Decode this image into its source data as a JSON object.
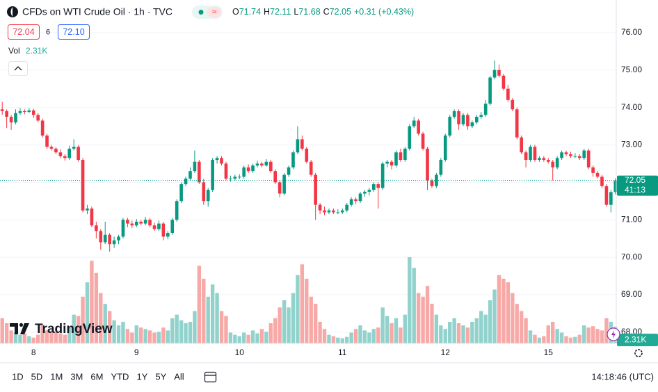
{
  "header": {
    "title": "CFDs on WTI Crude Oil · 1h · TVC",
    "ohlc": [
      {
        "label": "O",
        "value": "71.74"
      },
      {
        "label": "H",
        "value": "72.11"
      },
      {
        "label": "L",
        "value": "71.68"
      },
      {
        "label": "C",
        "value": "72.05"
      }
    ],
    "change": "+0.31 (+0.43%)",
    "sell": "72.04",
    "spread": "6",
    "buy": "72.10",
    "vol_label": "Vol",
    "vol_value": "2.31K",
    "logo": "TradingView"
  },
  "chart_data": {
    "type": "candlestick",
    "up_color": "#089981",
    "down_color": "#f23645",
    "vol_up_color": "#92d2cc",
    "vol_down_color": "#f7a9a7",
    "grid": true,
    "ylim": [
      67.7,
      76.87
    ],
    "yticks": [
      {
        "value": 68,
        "label": "68.00"
      },
      {
        "value": 69,
        "label": "69.00"
      },
      {
        "value": 70,
        "label": "70.00"
      },
      {
        "value": 71,
        "label": "71.00"
      },
      {
        "value": 72,
        "label": "72.00"
      },
      {
        "value": 73,
        "label": "73.00"
      },
      {
        "value": 74,
        "label": "74.00"
      },
      {
        "value": 75,
        "label": "75.00"
      },
      {
        "value": 76,
        "label": "76.00"
      }
    ],
    "vlim": [
      0,
      12
    ],
    "last_price_label": "72.05",
    "countdown": "41:13",
    "volume_label": "2.31K",
    "categories": [
      null,
      null,
      null,
      null,
      null,
      null,
      null,
      "8",
      null,
      null,
      null,
      null,
      null,
      null,
      null,
      null,
      null,
      null,
      null,
      null,
      null,
      null,
      null,
      null,
      null,
      null,
      null,
      null,
      null,
      null,
      "9",
      null,
      null,
      null,
      null,
      null,
      null,
      null,
      null,
      null,
      null,
      null,
      null,
      null,
      null,
      null,
      null,
      null,
      null,
      null,
      null,
      null,
      null,
      "10",
      null,
      null,
      null,
      null,
      null,
      null,
      null,
      null,
      null,
      null,
      null,
      null,
      null,
      null,
      null,
      null,
      null,
      null,
      null,
      null,
      null,
      null,
      "11",
      null,
      null,
      null,
      null,
      null,
      null,
      null,
      null,
      null,
      null,
      null,
      null,
      null,
      null,
      null,
      null,
      null,
      null,
      null,
      null,
      null,
      null,
      "12",
      null,
      null,
      null,
      null,
      null,
      null,
      null,
      null,
      null,
      null,
      null,
      null,
      null,
      null,
      null,
      null,
      null,
      null,
      null,
      null,
      null,
      null,
      "15",
      null,
      null,
      null,
      null,
      null,
      null,
      null,
      null,
      null,
      null,
      null,
      null,
      null,
      null,
      null
    ],
    "candles": [
      [
        73.95,
        74.15,
        73.8,
        73.9
      ],
      [
        73.9,
        73.95,
        73.45,
        73.75
      ],
      [
        73.75,
        73.8,
        73.4,
        73.6
      ],
      [
        73.6,
        73.95,
        73.55,
        73.85
      ],
      [
        73.85,
        73.98,
        73.8,
        73.9
      ],
      [
        73.9,
        73.95,
        73.82,
        73.88
      ],
      [
        73.88,
        73.98,
        73.85,
        73.92
      ],
      [
        73.92,
        73.96,
        73.72,
        73.8
      ],
      [
        73.8,
        73.85,
        73.6,
        73.65
      ],
      [
        73.65,
        73.7,
        73.2,
        73.25
      ],
      [
        73.25,
        73.3,
        72.9,
        72.95
      ],
      [
        72.95,
        73.0,
        72.85,
        72.9
      ],
      [
        72.9,
        72.95,
        72.75,
        72.8
      ],
      [
        72.8,
        72.88,
        72.65,
        72.7
      ],
      [
        72.7,
        72.75,
        72.58,
        72.65
      ],
      [
        72.65,
        72.98,
        72.6,
        72.9
      ],
      [
        72.9,
        73.15,
        72.85,
        72.95
      ],
      [
        72.95,
        73.0,
        72.55,
        72.6
      ],
      [
        72.6,
        72.65,
        71.2,
        71.25
      ],
      [
        71.25,
        71.4,
        71.15,
        71.3
      ],
      [
        71.3,
        71.35,
        70.8,
        70.85
      ],
      [
        70.85,
        70.95,
        70.5,
        70.7
      ],
      [
        70.7,
        70.75,
        70.2,
        70.4
      ],
      [
        70.4,
        70.95,
        70.35,
        70.6
      ],
      [
        70.6,
        70.65,
        70.15,
        70.35
      ],
      [
        70.35,
        70.55,
        70.25,
        70.45
      ],
      [
        70.45,
        70.6,
        70.35,
        70.55
      ],
      [
        70.55,
        71.05,
        70.5,
        71.0
      ],
      [
        71.0,
        71.05,
        70.8,
        70.9
      ],
      [
        70.9,
        70.98,
        70.78,
        70.85
      ],
      [
        70.85,
        71.02,
        70.8,
        70.95
      ],
      [
        70.95,
        71.0,
        70.85,
        70.9
      ],
      [
        70.9,
        71.08,
        70.85,
        71.0
      ],
      [
        71.0,
        71.05,
        70.8,
        70.85
      ],
      [
        70.85,
        70.92,
        70.7,
        70.75
      ],
      [
        70.75,
        70.98,
        70.7,
        70.9
      ],
      [
        70.9,
        70.95,
        70.45,
        70.55
      ],
      [
        70.55,
        70.7,
        70.48,
        70.65
      ],
      [
        70.65,
        71.05,
        70.6,
        71.0
      ],
      [
        71.0,
        71.55,
        70.95,
        71.5
      ],
      [
        71.5,
        72.0,
        71.45,
        71.95
      ],
      [
        71.95,
        72.15,
        71.9,
        72.1
      ],
      [
        72.1,
        72.4,
        72.05,
        72.3
      ],
      [
        72.3,
        72.85,
        72.25,
        72.55
      ],
      [
        72.55,
        72.6,
        71.95,
        72.0
      ],
      [
        72.0,
        72.1,
        71.4,
        71.5
      ],
      [
        71.5,
        71.85,
        71.35,
        71.8
      ],
      [
        71.8,
        72.65,
        71.75,
        72.6
      ],
      [
        72.6,
        72.7,
        72.5,
        72.65
      ],
      [
        72.65,
        72.7,
        72.45,
        72.5
      ],
      [
        72.5,
        72.55,
        72.05,
        72.1
      ],
      [
        72.1,
        72.18,
        72.02,
        72.1
      ],
      [
        72.1,
        72.2,
        72.05,
        72.15
      ],
      [
        72.15,
        72.22,
        72.08,
        72.15
      ],
      [
        72.15,
        72.45,
        72.1,
        72.4
      ],
      [
        72.4,
        72.48,
        72.25,
        72.3
      ],
      [
        72.3,
        72.5,
        72.25,
        72.45
      ],
      [
        72.45,
        72.58,
        72.4,
        72.5
      ],
      [
        72.5,
        72.55,
        72.4,
        72.45
      ],
      [
        72.45,
        72.62,
        72.42,
        72.55
      ],
      [
        72.55,
        72.6,
        72.25,
        72.3
      ],
      [
        72.3,
        72.35,
        71.95,
        72.0
      ],
      [
        72.0,
        72.05,
        71.6,
        71.7
      ],
      [
        71.7,
        72.25,
        71.65,
        72.2
      ],
      [
        72.2,
        72.45,
        72.15,
        72.4
      ],
      [
        72.4,
        72.85,
        72.35,
        72.8
      ],
      [
        72.8,
        73.5,
        72.75,
        73.15
      ],
      [
        73.15,
        73.25,
        72.85,
        72.9
      ],
      [
        72.9,
        72.95,
        72.5,
        72.55
      ],
      [
        72.55,
        72.6,
        72.15,
        72.2
      ],
      [
        72.2,
        72.25,
        71.0,
        71.4
      ],
      [
        71.4,
        71.45,
        71.15,
        71.25
      ],
      [
        71.25,
        71.35,
        71.12,
        71.2
      ],
      [
        71.2,
        71.3,
        71.15,
        71.25
      ],
      [
        71.25,
        71.3,
        71.15,
        71.2
      ],
      [
        71.2,
        71.28,
        71.15,
        71.2
      ],
      [
        71.2,
        71.3,
        71.15,
        71.25
      ],
      [
        71.25,
        71.45,
        71.2,
        71.4
      ],
      [
        71.4,
        71.6,
        71.35,
        71.55
      ],
      [
        71.55,
        71.6,
        71.42,
        71.5
      ],
      [
        71.5,
        71.75,
        71.45,
        71.7
      ],
      [
        71.7,
        71.8,
        71.62,
        71.75
      ],
      [
        71.75,
        71.85,
        71.65,
        71.8
      ],
      [
        71.8,
        72.0,
        71.75,
        71.95
      ],
      [
        71.95,
        72.0,
        71.3,
        71.85
      ],
      [
        71.85,
        72.55,
        71.8,
        72.5
      ],
      [
        72.5,
        72.6,
        72.4,
        72.55
      ],
      [
        72.55,
        72.6,
        72.35,
        72.45
      ],
      [
        72.45,
        72.85,
        72.4,
        72.8
      ],
      [
        72.8,
        72.9,
        72.55,
        72.6
      ],
      [
        72.6,
        72.95,
        72.55,
        72.9
      ],
      [
        72.9,
        73.55,
        72.85,
        73.5
      ],
      [
        73.5,
        73.75,
        73.45,
        73.65
      ],
      [
        73.65,
        73.7,
        73.25,
        73.3
      ],
      [
        73.3,
        73.35,
        72.85,
        72.9
      ],
      [
        72.9,
        72.95,
        71.8,
        72.05
      ],
      [
        72.05,
        72.1,
        71.85,
        71.9
      ],
      [
        71.9,
        72.25,
        71.85,
        72.2
      ],
      [
        72.2,
        72.65,
        72.15,
        72.6
      ],
      [
        72.6,
        73.3,
        72.55,
        73.25
      ],
      [
        73.25,
        73.8,
        73.2,
        73.75
      ],
      [
        73.75,
        73.95,
        73.7,
        73.9
      ],
      [
        73.9,
        73.95,
        73.4,
        73.55
      ],
      [
        73.55,
        73.85,
        73.5,
        73.8
      ],
      [
        73.8,
        73.85,
        73.4,
        73.5
      ],
      [
        73.5,
        73.65,
        73.45,
        73.6
      ],
      [
        73.6,
        73.8,
        73.55,
        73.75
      ],
      [
        73.75,
        73.88,
        73.7,
        73.8
      ],
      [
        73.8,
        74.2,
        73.75,
        74.1
      ],
      [
        74.1,
        74.85,
        74.05,
        74.8
      ],
      [
        74.8,
        75.25,
        74.75,
        75.0
      ],
      [
        75.0,
        75.15,
        74.8,
        74.85
      ],
      [
        74.85,
        74.9,
        74.45,
        74.5
      ],
      [
        74.5,
        74.6,
        74.15,
        74.2
      ],
      [
        74.2,
        74.25,
        73.9,
        73.95
      ],
      [
        73.95,
        74.0,
        73.15,
        73.2
      ],
      [
        73.2,
        73.25,
        72.75,
        72.8
      ],
      [
        72.8,
        72.85,
        72.4,
        72.6
      ],
      [
        72.6,
        73.0,
        72.55,
        72.95
      ],
      [
        72.95,
        73.0,
        72.55,
        72.6
      ],
      [
        72.6,
        72.7,
        72.55,
        72.65
      ],
      [
        72.65,
        72.7,
        72.55,
        72.6
      ],
      [
        72.6,
        72.65,
        72.5,
        72.55
      ],
      [
        72.55,
        72.6,
        72.05,
        72.4
      ],
      [
        72.4,
        72.7,
        72.35,
        72.65
      ],
      [
        72.65,
        72.85,
        72.6,
        72.8
      ],
      [
        72.8,
        72.85,
        72.7,
        72.75
      ],
      [
        72.75,
        72.82,
        72.65,
        72.7
      ],
      [
        72.7,
        72.78,
        72.65,
        72.7
      ],
      [
        72.7,
        72.75,
        72.6,
        72.65
      ],
      [
        72.65,
        72.9,
        72.6,
        72.85
      ],
      [
        72.85,
        72.9,
        72.35,
        72.4
      ],
      [
        72.4,
        72.45,
        72.15,
        72.25
      ],
      [
        72.25,
        72.3,
        72.1,
        72.15
      ],
      [
        72.15,
        72.2,
        71.85,
        71.9
      ],
      [
        71.9,
        71.95,
        71.35,
        71.4
      ],
      [
        71.4,
        71.8,
        71.2,
        71.74
      ],
      [
        71.74,
        72.11,
        71.68,
        72.05
      ]
    ],
    "volumes": [
      3.5,
      2.8,
      1.8,
      1.5,
      1.2,
      1.4,
      1.0,
      0.8,
      1.2,
      2.6,
      1.8,
      1.5,
      1.6,
      1.4,
      1.2,
      2.2,
      4.0,
      3.8,
      6.5,
      8.5,
      11.5,
      9.8,
      7.0,
      5.5,
      4.5,
      3.2,
      2.5,
      3.0,
      2.0,
      1.5,
      2.5,
      2.2,
      2.0,
      1.8,
      1.5,
      1.6,
      2.2,
      1.8,
      3.5,
      4.0,
      3.2,
      2.8,
      3.0,
      4.5,
      10.8,
      9.0,
      6.5,
      8.2,
      7.0,
      4.5,
      3.8,
      1.5,
      1.2,
      1.0,
      1.5,
      1.2,
      1.8,
      1.4,
      2.0,
      1.6,
      2.8,
      3.5,
      5.0,
      6.0,
      5.0,
      7.0,
      9.5,
      11.0,
      9.0,
      6.5,
      5.5,
      3.0,
      2.0,
      1.2,
      1.0,
      0.8,
      0.7,
      0.9,
      1.5,
      2.0,
      2.5,
      1.8,
      1.5,
      2.0,
      2.2,
      5.0,
      3.8,
      2.8,
      3.5,
      2.2,
      4.0,
      12.0,
      10.5,
      7.0,
      6.5,
      8.0,
      5.5,
      4.0,
      2.5,
      2.0,
      3.0,
      3.5,
      2.8,
      2.5,
      2.2,
      3.0,
      3.5,
      4.5,
      4.0,
      6.0,
      7.5,
      9.5,
      9.0,
      8.5,
      7.0,
      5.5,
      4.5,
      3.5,
      1.8,
      1.2,
      0.8,
      1.0,
      2.5,
      3.0,
      2.0,
      1.5,
      1.0,
      0.8,
      0.9,
      1.2,
      2.5,
      2.2,
      2.4,
      2.0,
      1.8,
      3.5,
      3.0,
      2.31
    ]
  },
  "footer": {
    "ranges": [
      "1D",
      "5D",
      "1M",
      "3M",
      "6M",
      "YTD",
      "1Y",
      "5Y",
      "All"
    ],
    "time": "14:18:46 (UTC)"
  }
}
